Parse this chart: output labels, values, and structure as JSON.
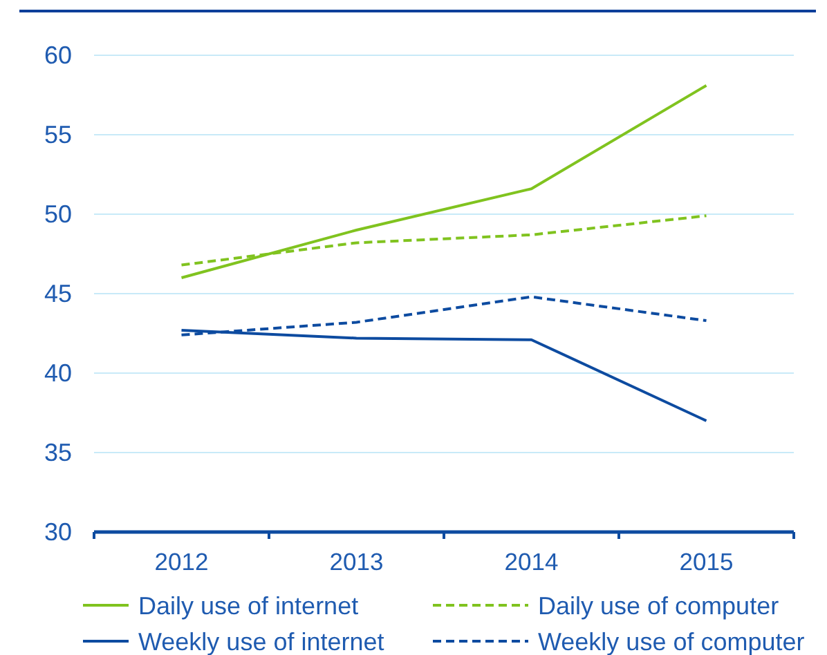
{
  "chart_data": {
    "type": "line",
    "categories": [
      "2012",
      "2013",
      "2014",
      "2015"
    ],
    "series": [
      {
        "name": "Daily use of internet",
        "color": "#80c31f",
        "line_style": "solid",
        "values": [
          46.0,
          49.0,
          51.6,
          58.1
        ]
      },
      {
        "name": "Daily use of computer",
        "color": "#80c31f",
        "line_style": "dashed",
        "values": [
          46.8,
          48.2,
          48.7,
          49.9
        ]
      },
      {
        "name": "Weekly use of internet",
        "color": "#0d4ba0",
        "line_style": "solid",
        "values": [
          42.7,
          42.2,
          42.1,
          37.0
        ]
      },
      {
        "name": "Weekly use of computer",
        "color": "#0d4ba0",
        "line_style": "dashed",
        "values": [
          42.4,
          43.2,
          44.8,
          43.3
        ]
      }
    ],
    "ylim": [
      30,
      60
    ],
    "yticks": [
      30,
      35,
      40,
      45,
      50,
      55,
      60
    ],
    "grid": "y",
    "legend": "bottom",
    "marker": "none"
  }
}
